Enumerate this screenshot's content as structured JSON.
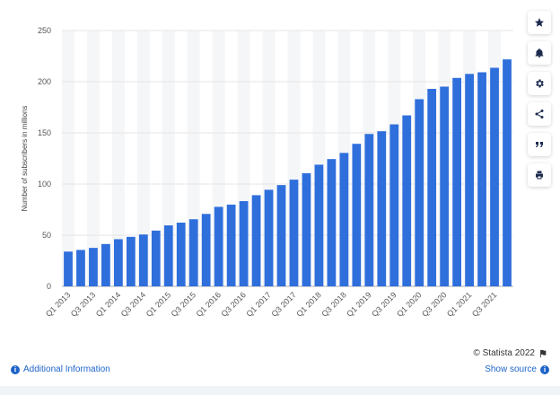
{
  "colors": {
    "bar": "#2f6fdc",
    "grid": "#e6e6e6",
    "band": "#f5f6f8",
    "accent": "#1e64c8"
  },
  "sidebar": {
    "buttons": [
      {
        "icon": "star-icon"
      },
      {
        "icon": "bell-icon"
      },
      {
        "icon": "gear-icon"
      },
      {
        "icon": "share-icon"
      },
      {
        "icon": "quote-icon"
      },
      {
        "icon": "print-icon"
      }
    ]
  },
  "footer": {
    "copyright": "© Statista 2022",
    "additional_info": "Additional Information",
    "show_source": "Show source"
  },
  "chart_data": {
    "type": "bar",
    "title": "",
    "xlabel": "",
    "ylabel": "Number of subscribers in millions",
    "ylim": [
      0,
      250
    ],
    "yticks": [
      0,
      50,
      100,
      150,
      200,
      250
    ],
    "grid": true,
    "categories": [
      "Q1 2013",
      "Q2 2013",
      "Q3 2013",
      "Q4 2013",
      "Q1 2014",
      "Q2 2014",
      "Q3 2014",
      "Q4 2014",
      "Q1 2015",
      "Q2 2015",
      "Q3 2015",
      "Q4 2015",
      "Q1 2016",
      "Q2 2016",
      "Q3 2016",
      "Q4 2016",
      "Q1 2017",
      "Q2 2017",
      "Q3 2017",
      "Q4 2017",
      "Q1 2018",
      "Q2 2018",
      "Q3 2018",
      "Q4 2018",
      "Q1 2019",
      "Q2 2019",
      "Q3 2019",
      "Q4 2019",
      "Q1 2020",
      "Q2 2020",
      "Q3 2020",
      "Q4 2020",
      "Q1 2021",
      "Q2 2021",
      "Q3 2021",
      "Q4 2021"
    ],
    "tick_labels": [
      "Q1 2013",
      "Q3 2013",
      "Q1 2014",
      "Q3 2014",
      "Q1 2015",
      "Q3 2015",
      "Q1 2016",
      "Q3 2016",
      "Q1 2017",
      "Q3 2017",
      "Q1 2018",
      "Q3 2018",
      "Q1 2019",
      "Q3 2019",
      "Q1 2020",
      "Q3 2020",
      "Q1 2021",
      "Q3 2021"
    ],
    "values": [
      34,
      35.6,
      37.6,
      41.4,
      46.1,
      48.4,
      50.7,
      54.5,
      59.6,
      62.3,
      65.6,
      70.8,
      77.7,
      79.9,
      83.3,
      89.1,
      94.4,
      99,
      104.3,
      110.6,
      118.9,
      124.4,
      130.4,
      139.3,
      148.9,
      151.6,
      158.3,
      167.1,
      182.9,
      193,
      195.2,
      203.7,
      207.6,
      209.2,
      213.6,
      221.8
    ]
  }
}
